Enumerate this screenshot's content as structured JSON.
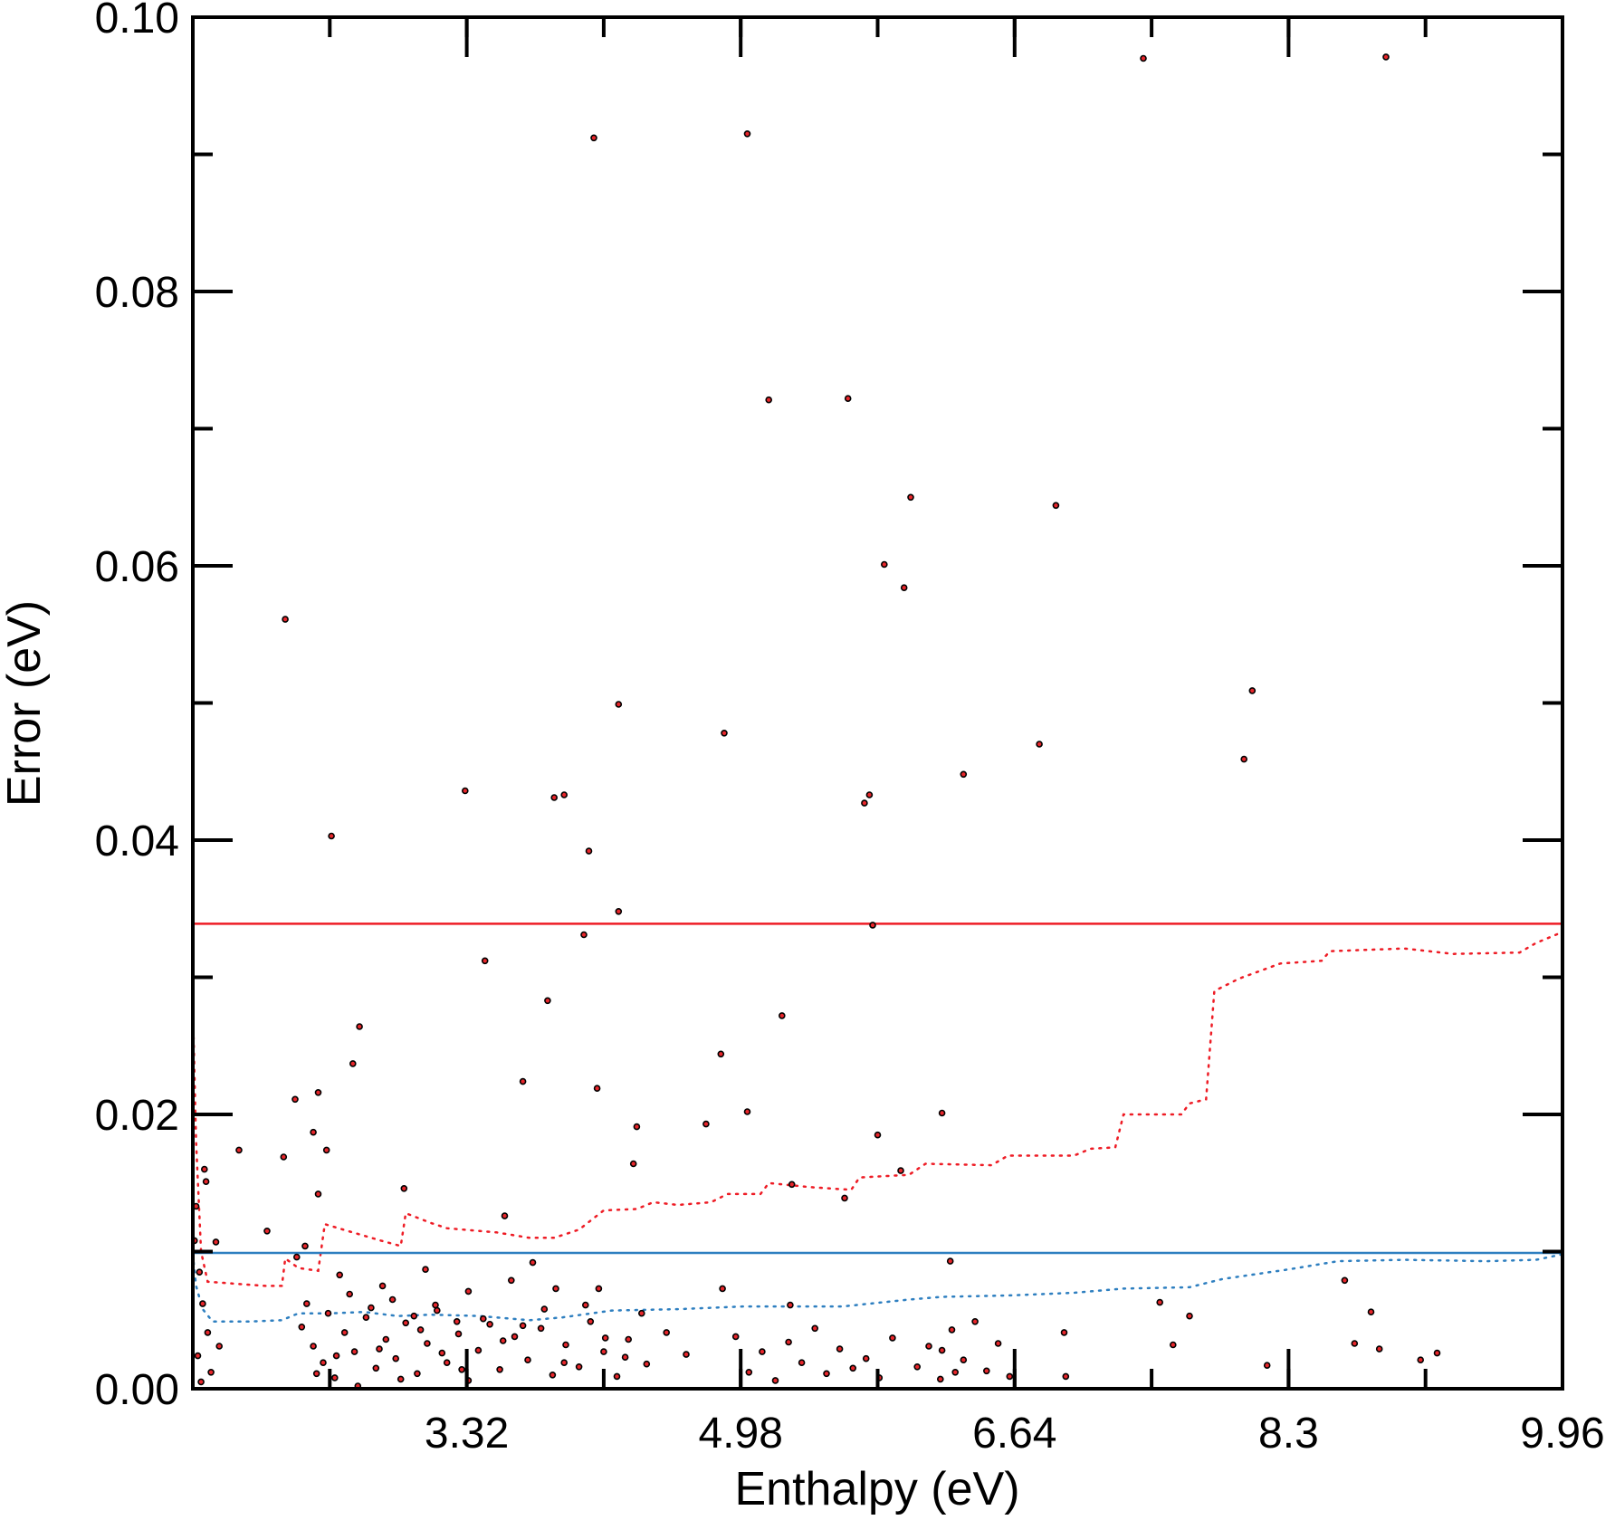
{
  "chart_data": {
    "type": "scatter",
    "title": "",
    "xlabel": "Enthalpy (eV)",
    "ylabel": "Error (eV)",
    "xlim": [
      1.66,
      9.96
    ],
    "ylim": [
      0,
      0.1
    ],
    "xticks": [
      3.32,
      4.98,
      6.64,
      8.3,
      9.96
    ],
    "xtick_labels": [
      "3.32",
      "4.98",
      "6.64",
      "8.3",
      "9.96"
    ],
    "yticks": [
      0,
      0.02,
      0.04,
      0.06,
      0.08,
      0.1
    ],
    "ytick_labels": [
      "0.00",
      "0.02",
      "0.04",
      "0.06",
      "0.08",
      "0.10"
    ],
    "grid": false,
    "colors": {
      "points_fill": "#e8262b",
      "points_edge": "#000000",
      "red": "#ee1c25",
      "blue": "#2e7fc0"
    },
    "series": [
      {
        "kind": "points",
        "points": [
          [
            5.02,
            0.0915
          ],
          [
            4.09,
            0.0912
          ],
          [
            7.42,
            0.097
          ],
          [
            8.89,
            0.0971
          ],
          [
            5.15,
            0.0721
          ],
          [
            5.63,
            0.0722
          ],
          [
            6.01,
            0.065
          ],
          [
            6.89,
            0.0644
          ],
          [
            5.85,
            0.0601
          ],
          [
            5.97,
            0.0584
          ],
          [
            2.22,
            0.0561
          ],
          [
            8.08,
            0.0509
          ],
          [
            4.24,
            0.0499
          ],
          [
            4.88,
            0.0478
          ],
          [
            6.79,
            0.047
          ],
          [
            8.03,
            0.0459
          ],
          [
            6.33,
            0.0448
          ],
          [
            3.31,
            0.0436
          ],
          [
            3.85,
            0.0431
          ],
          [
            3.91,
            0.0433
          ],
          [
            5.73,
            0.0427
          ],
          [
            5.76,
            0.0433
          ],
          [
            2.5,
            0.0403
          ],
          [
            4.06,
            0.0392
          ],
          [
            4.24,
            0.0348
          ],
          [
            4.03,
            0.0331
          ],
          [
            5.78,
            0.0338
          ],
          [
            3.43,
            0.0312
          ],
          [
            3.81,
            0.0283
          ],
          [
            5.23,
            0.0272
          ],
          [
            2.67,
            0.0264
          ],
          [
            2.63,
            0.0237
          ],
          [
            4.86,
            0.0244
          ],
          [
            3.66,
            0.0224
          ],
          [
            4.11,
            0.0219
          ],
          [
            2.42,
            0.0216
          ],
          [
            2.28,
            0.0211
          ],
          [
            5.02,
            0.0202
          ],
          [
            6.2,
            0.0201
          ],
          [
            4.77,
            0.0193
          ],
          [
            4.35,
            0.0191
          ],
          [
            2.39,
            0.0187
          ],
          [
            5.81,
            0.0185
          ],
          [
            2.47,
            0.0174
          ],
          [
            1.94,
            0.0174
          ],
          [
            2.21,
            0.0169
          ],
          [
            4.33,
            0.0164
          ],
          [
            5.95,
            0.0159
          ],
          [
            1.73,
            0.016
          ],
          [
            2.42,
            0.0142
          ],
          [
            5.61,
            0.0139
          ],
          [
            5.29,
            0.0149
          ],
          [
            2.94,
            0.0146
          ],
          [
            3.55,
            0.0126
          ],
          [
            2.11,
            0.0115
          ],
          [
            1.8,
            0.0107
          ],
          [
            2.34,
            0.0104
          ],
          [
            6.25,
            0.0093
          ],
          [
            8.64,
            0.0079
          ],
          [
            8.8,
            0.0056
          ],
          [
            7.52,
            0.0063
          ],
          [
            7.7,
            0.0053
          ],
          [
            5.28,
            0.0061
          ],
          [
            4.87,
            0.0073
          ],
          [
            8.85,
            0.0029
          ],
          [
            8.7,
            0.0033
          ],
          [
            9.1,
            0.0021
          ],
          [
            9.2,
            0.0026
          ],
          [
            8.17,
            0.0017
          ],
          [
            7.6,
            0.0032
          ],
          [
            6.95,
            0.0009
          ],
          [
            6.94,
            0.0041
          ],
          [
            1.7,
            0.0085
          ],
          [
            1.72,
            0.0062
          ],
          [
            1.75,
            0.0041
          ],
          [
            1.69,
            0.0024
          ],
          [
            1.77,
            0.0012
          ],
          [
            1.71,
            0.0005
          ],
          [
            1.82,
            0.0031
          ],
          [
            1.67,
            0.0108
          ],
          [
            1.68,
            0.0133
          ],
          [
            1.74,
            0.0151
          ],
          [
            2.32,
            0.0045
          ],
          [
            2.39,
            0.0031
          ],
          [
            2.45,
            0.0019
          ],
          [
            2.52,
            0.0008
          ],
          [
            2.58,
            0.0041
          ],
          [
            2.64,
            0.0027
          ],
          [
            2.71,
            0.0052
          ],
          [
            2.77,
            0.0015
          ],
          [
            2.83,
            0.0036
          ],
          [
            2.89,
            0.0022
          ],
          [
            2.95,
            0.0048
          ],
          [
            3.02,
            0.0011
          ],
          [
            3.08,
            0.0033
          ],
          [
            3.14,
            0.0057
          ],
          [
            3.2,
            0.0019
          ],
          [
            3.27,
            0.004
          ],
          [
            3.33,
            0.0006
          ],
          [
            3.39,
            0.0028
          ],
          [
            3.46,
            0.0047
          ],
          [
            3.52,
            0.0014
          ],
          [
            2.35,
            0.0062
          ],
          [
            2.48,
            0.0055
          ],
          [
            2.61,
            0.0069
          ],
          [
            2.74,
            0.0059
          ],
          [
            2.87,
            0.0065
          ],
          [
            3.0,
            0.0053
          ],
          [
            3.13,
            0.0061
          ],
          [
            3.26,
            0.0049
          ],
          [
            2.29,
            0.0096
          ],
          [
            2.55,
            0.0083
          ],
          [
            2.81,
            0.0075
          ],
          [
            3.07,
            0.0087
          ],
          [
            3.33,
            0.0071
          ],
          [
            3.59,
            0.0079
          ],
          [
            3.72,
            0.0092
          ],
          [
            3.86,
            0.0073
          ],
          [
            3.61,
            0.0038
          ],
          [
            3.69,
            0.0021
          ],
          [
            3.77,
            0.0044
          ],
          [
            3.84,
            0.001
          ],
          [
            3.92,
            0.0032
          ],
          [
            4.0,
            0.0016
          ],
          [
            4.07,
            0.0049
          ],
          [
            4.15,
            0.0027
          ],
          [
            4.23,
            0.0009
          ],
          [
            4.3,
            0.0036
          ],
          [
            4.38,
            0.0055
          ],
          [
            4.12,
            0.0073
          ],
          [
            4.41,
            0.0018
          ],
          [
            4.53,
            0.0041
          ],
          [
            4.65,
            0.0025
          ],
          [
            4.95,
            0.0038
          ],
          [
            5.03,
            0.0012
          ],
          [
            5.11,
            0.0027
          ],
          [
            5.19,
            0.0006
          ],
          [
            5.27,
            0.0034
          ],
          [
            5.35,
            0.0019
          ],
          [
            5.43,
            0.0044
          ],
          [
            5.5,
            0.0011
          ],
          [
            5.58,
            0.0029
          ],
          [
            5.66,
            0.0015
          ],
          [
            5.74,
            0.0022
          ],
          [
            5.82,
            0.0008
          ],
          [
            5.9,
            0.0037
          ],
          [
            6.05,
            0.0016
          ],
          [
            6.12,
            0.0031
          ],
          [
            6.19,
            0.0007
          ],
          [
            6.26,
            0.0043
          ],
          [
            6.33,
            0.0021
          ],
          [
            6.4,
            0.0049
          ],
          [
            6.47,
            0.0013
          ],
          [
            6.54,
            0.0033
          ],
          [
            6.61,
            0.0009
          ],
          [
            6.2,
            0.0028
          ],
          [
            6.28,
            0.0012
          ],
          [
            2.41,
            0.0011
          ],
          [
            2.53,
            0.0024
          ],
          [
            2.66,
            0.0002
          ],
          [
            2.79,
            0.0029
          ],
          [
            2.92,
            0.0007
          ],
          [
            3.04,
            0.0043
          ],
          [
            3.17,
            0.0026
          ],
          [
            3.29,
            0.0014
          ],
          [
            3.42,
            0.0051
          ],
          [
            3.54,
            0.0035
          ],
          [
            3.66,
            0.0046
          ],
          [
            3.79,
            0.0058
          ],
          [
            3.91,
            0.0019
          ],
          [
            4.04,
            0.0061
          ],
          [
            4.16,
            0.0037
          ],
          [
            4.28,
            0.0023
          ]
        ]
      },
      {
        "kind": "dotted",
        "color": "red",
        "points": [
          [
            1.66,
            0.028
          ],
          [
            1.68,
            0.018
          ],
          [
            1.71,
            0.01
          ],
          [
            1.75,
            0.0078
          ],
          [
            2.1,
            0.0075
          ],
          [
            2.2,
            0.0075
          ],
          [
            2.22,
            0.0095
          ],
          [
            2.3,
            0.0088
          ],
          [
            2.42,
            0.0086
          ],
          [
            2.46,
            0.012
          ],
          [
            2.6,
            0.0115
          ],
          [
            2.8,
            0.0108
          ],
          [
            2.92,
            0.0104
          ],
          [
            2.95,
            0.0128
          ],
          [
            3.1,
            0.0121
          ],
          [
            3.2,
            0.0117
          ],
          [
            3.5,
            0.0114
          ],
          [
            3.7,
            0.011
          ],
          [
            3.85,
            0.011
          ],
          [
            4.0,
            0.0116
          ],
          [
            4.15,
            0.013
          ],
          [
            4.35,
            0.0131
          ],
          [
            4.45,
            0.0136
          ],
          [
            4.6,
            0.0134
          ],
          [
            4.8,
            0.0136
          ],
          [
            4.9,
            0.0142
          ],
          [
            5.1,
            0.0142
          ],
          [
            5.15,
            0.015
          ],
          [
            5.4,
            0.0147
          ],
          [
            5.65,
            0.0145
          ],
          [
            5.7,
            0.0154
          ],
          [
            6.0,
            0.0156
          ],
          [
            6.1,
            0.0164
          ],
          [
            6.5,
            0.0163
          ],
          [
            6.6,
            0.017
          ],
          [
            7.0,
            0.017
          ],
          [
            7.1,
            0.0175
          ],
          [
            7.25,
            0.0176
          ],
          [
            7.3,
            0.02
          ],
          [
            7.65,
            0.02
          ],
          [
            7.7,
            0.0208
          ],
          [
            7.8,
            0.0211
          ],
          [
            7.85,
            0.029
          ],
          [
            8.0,
            0.0299
          ],
          [
            8.25,
            0.031
          ],
          [
            8.5,
            0.0312
          ],
          [
            8.55,
            0.0319
          ],
          [
            9.0,
            0.0321
          ],
          [
            9.3,
            0.0317
          ],
          [
            9.7,
            0.0318
          ],
          [
            9.8,
            0.0325
          ],
          [
            9.96,
            0.0333
          ]
        ]
      },
      {
        "kind": "dotted",
        "color": "blue",
        "points": [
          [
            1.66,
            0.0098
          ],
          [
            1.68,
            0.0075
          ],
          [
            1.72,
            0.0058
          ],
          [
            1.78,
            0.0049
          ],
          [
            2.0,
            0.0049
          ],
          [
            2.2,
            0.005
          ],
          [
            2.3,
            0.0055
          ],
          [
            2.5,
            0.0055
          ],
          [
            2.7,
            0.0056
          ],
          [
            2.9,
            0.0053
          ],
          [
            3.1,
            0.0054
          ],
          [
            3.4,
            0.0053
          ],
          [
            3.7,
            0.005
          ],
          [
            3.9,
            0.0052
          ],
          [
            4.2,
            0.0057
          ],
          [
            4.6,
            0.0058
          ],
          [
            5.0,
            0.006
          ],
          [
            5.4,
            0.006
          ],
          [
            5.6,
            0.006
          ],
          [
            6.0,
            0.0065
          ],
          [
            6.2,
            0.0067
          ],
          [
            6.6,
            0.0068
          ],
          [
            7.0,
            0.007
          ],
          [
            7.3,
            0.0073
          ],
          [
            7.7,
            0.0074
          ],
          [
            7.9,
            0.008
          ],
          [
            8.3,
            0.0087
          ],
          [
            8.6,
            0.0093
          ],
          [
            9.0,
            0.0094
          ],
          [
            9.5,
            0.0093
          ],
          [
            9.8,
            0.0094
          ],
          [
            9.96,
            0.0098
          ]
        ]
      },
      {
        "kind": "hline",
        "color": "red",
        "y": 0.0339
      },
      {
        "kind": "hline",
        "color": "blue",
        "y": 0.0099
      }
    ]
  }
}
